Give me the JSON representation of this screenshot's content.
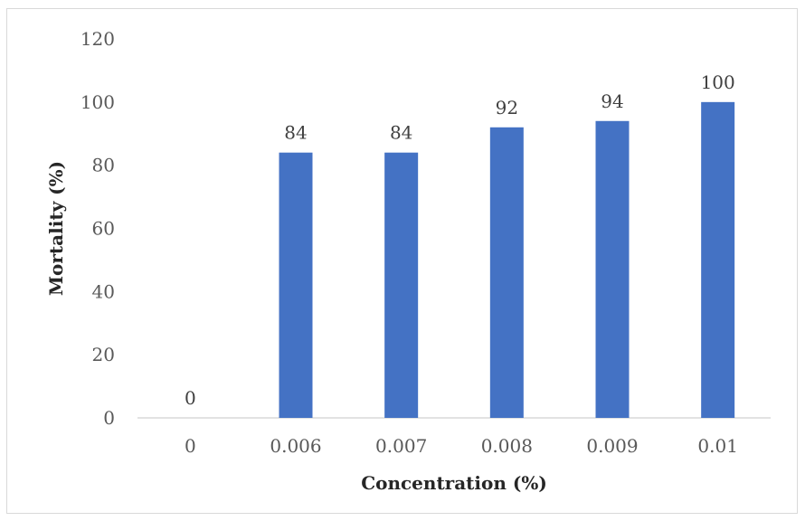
{
  "chart_data": {
    "type": "bar",
    "categories": [
      "0",
      "0.006",
      "0.007",
      "0.008",
      "0.009",
      "0.01"
    ],
    "values": [
      0,
      84,
      84,
      92,
      94,
      100
    ],
    "data_labels": [
      "0",
      "84",
      "84",
      "92",
      "94",
      "100"
    ],
    "xlabel": "Concentration (%)",
    "ylabel": "Mortality (%)",
    "ylim": [
      0,
      120
    ],
    "yticks": [
      "0",
      "20",
      "40",
      "60",
      "80",
      "100",
      "120"
    ],
    "grid": false,
    "legend": "none",
    "bar_color": "#4472c4",
    "axis_color": "#d9d9d9"
  }
}
